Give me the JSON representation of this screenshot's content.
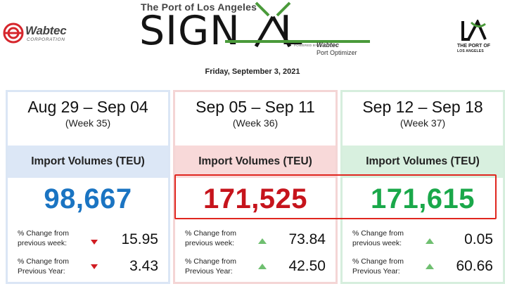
{
  "header": {
    "wabtec_name": "Wabtec",
    "wabtec_sub": "CORPORATION",
    "signal_top": "The Port of Los Angeles",
    "signal_left": "SIGN",
    "signal_right": "L",
    "signal_powered": "POWERED BY",
    "signal_brand": "Wabtec",
    "signal_product": "Port Optimizer",
    "la_line1": "THE PORT OF",
    "la_line2": "LOS ANGELES",
    "date": "Friday, September 3, 2021"
  },
  "colors": {
    "week35_accent": "#1a74c2",
    "week36_accent": "#c6141c",
    "week37_accent": "#1aa84a",
    "down_arrow": "#d11c22",
    "up_arrow": "#6fbf70",
    "highlight_border": "#e0261f"
  },
  "weeks": [
    {
      "range": "Aug 29 – Sep 04",
      "week": "(Week 35)",
      "metric": "Import Volumes (TEU)",
      "volume": "98,667",
      "wow_label_1": "% Change from",
      "wow_label_2": "previous week:",
      "wow_direction": "down",
      "wow_value": "15.95",
      "yoy_label_1": "% Change from",
      "yoy_label_2": "Previous Year:",
      "yoy_direction": "down",
      "yoy_value": "3.43"
    },
    {
      "range": "Sep 05 – Sep 11",
      "week": "(Week 36)",
      "metric": "Import Volumes (TEU)",
      "volume": "171,525",
      "wow_label_1": "% Change from",
      "wow_label_2": "previous week:",
      "wow_direction": "up",
      "wow_value": "73.84",
      "yoy_label_1": "% Change from",
      "yoy_label_2": "Previous Year:",
      "yoy_direction": "up",
      "yoy_value": "42.50"
    },
    {
      "range": "Sep 12 – Sep 18",
      "week": "(Week 37)",
      "metric": "Import Volumes (TEU)",
      "volume": "171,615",
      "wow_label_1": "% Change from",
      "wow_label_2": "previous week:",
      "wow_direction": "up",
      "wow_value": "0.05",
      "yoy_label_1": "% Change from",
      "yoy_label_2": "Previous Year:",
      "yoy_direction": "up",
      "yoy_value": "60.66"
    }
  ]
}
